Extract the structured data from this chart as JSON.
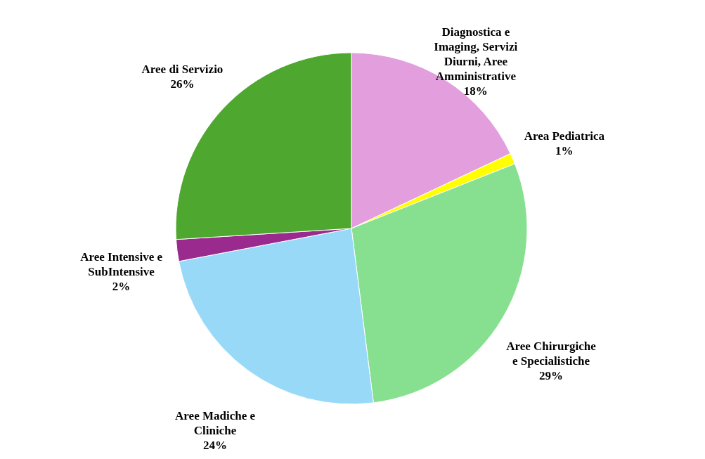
{
  "chart_data": {
    "type": "pie",
    "categories": [
      "Diagnostica e\nImaging, Servizi\nDiurni, Aree\nAmministrative",
      "Area Pediatrica",
      "Aree Chirurgiche\ne Specialistiche",
      "Aree Madiche e\nCliniche",
      "Aree Intensive e\nSubIntensive",
      "Aree di Servizio"
    ],
    "values": [
      18,
      1,
      29,
      24,
      2,
      26
    ],
    "value_labels": [
      "18%",
      "1%",
      "29%",
      "24%",
      "2%",
      "26%"
    ],
    "colors": [
      "#e39edd",
      "#ffff00",
      "#86e08f",
      "#97d9f7",
      "#9b2a8e",
      "#4ea72e"
    ]
  }
}
